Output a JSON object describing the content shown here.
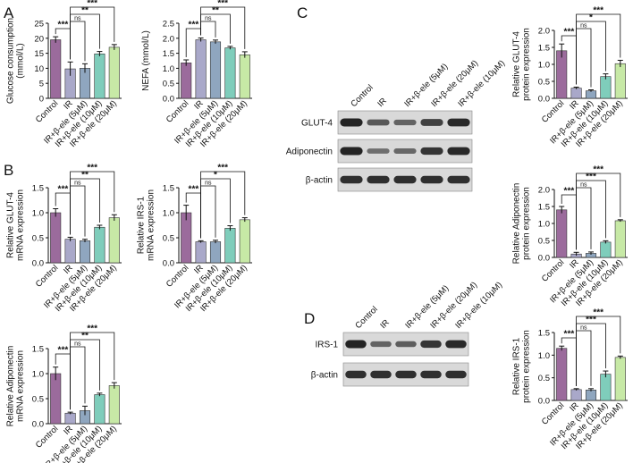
{
  "colors": {
    "Control": "#9b6b9c",
    "IR": "#a9a8c9",
    "IR+b-ele (5uM)": "#8fa6bf",
    "IR+b-ele (10uM)": "#7fcdbb",
    "IR+b-ele (20uM)": "#c7e9a6",
    "blot_bg": "#d9d9d9",
    "band": "#1a1a1a"
  },
  "groups": [
    "Control",
    "IR",
    "IR+β-ele (5μM)",
    "IR+β-ele (10μM)",
    "IR+β-ele (20μM)"
  ],
  "panel_labels": [
    "A",
    "B",
    "C",
    "D"
  ],
  "chart_data": [
    {
      "id": "glucose",
      "type": "bar",
      "panel": "A",
      "ylabel": [
        "Glucose consumption",
        "(mmol/L)"
      ],
      "ylim": [
        0,
        25
      ],
      "yticks": [
        0,
        5,
        10,
        15,
        20,
        25
      ],
      "values": [
        19.5,
        9.8,
        10.0,
        14.8,
        17.0
      ],
      "errors": [
        1.0,
        2.3,
        1.5,
        0.8,
        0.9
      ],
      "sig": [
        {
          "from": 0,
          "to": 1,
          "label": "***"
        },
        {
          "from": 1,
          "to": 2,
          "label": "ns"
        },
        {
          "from": 1,
          "to": 3,
          "label": "**"
        },
        {
          "from": 1,
          "to": 4,
          "label": "***"
        }
      ]
    },
    {
      "id": "nefa",
      "type": "bar",
      "panel": "A",
      "ylabel": [
        "NEFA (mmol/L)"
      ],
      "ylim": [
        0,
        2.5
      ],
      "yticks": [
        0.0,
        0.5,
        1.0,
        1.5,
        2.0,
        2.5
      ],
      "values": [
        1.18,
        1.95,
        1.88,
        1.68,
        1.45
      ],
      "errors": [
        0.1,
        0.06,
        0.06,
        0.05,
        0.1
      ],
      "sig": [
        {
          "from": 0,
          "to": 1,
          "label": "***"
        },
        {
          "from": 1,
          "to": 2,
          "label": "ns"
        },
        {
          "from": 1,
          "to": 3,
          "label": "**"
        },
        {
          "from": 1,
          "to": 4,
          "label": "***"
        }
      ]
    },
    {
      "id": "glut4_mrna",
      "type": "bar",
      "panel": "B",
      "ylabel": [
        "Relative GLUT-4",
        "mRNA expression"
      ],
      "ylim": [
        0,
        1.5
      ],
      "yticks": [
        0.0,
        0.5,
        1.0,
        1.5
      ],
      "values": [
        1.0,
        0.47,
        0.44,
        0.71,
        0.9
      ],
      "errors": [
        0.08,
        0.04,
        0.03,
        0.04,
        0.06
      ],
      "sig": [
        {
          "from": 0,
          "to": 1,
          "label": "***"
        },
        {
          "from": 1,
          "to": 2,
          "label": "ns"
        },
        {
          "from": 1,
          "to": 3,
          "label": "**"
        },
        {
          "from": 1,
          "to": 4,
          "label": "***"
        }
      ]
    },
    {
      "id": "irs1_mrna",
      "type": "bar",
      "panel": "B",
      "ylabel": [
        "Relative IRS-1",
        "mRNA expression"
      ],
      "ylim": [
        0,
        1.5
      ],
      "yticks": [
        0.0,
        0.5,
        1.0,
        1.5
      ],
      "values": [
        1.0,
        0.42,
        0.42,
        0.69,
        0.86
      ],
      "errors": [
        0.15,
        0.02,
        0.03,
        0.05,
        0.04
      ],
      "sig": [
        {
          "from": 0,
          "to": 1,
          "label": "***"
        },
        {
          "from": 1,
          "to": 2,
          "label": "ns"
        },
        {
          "from": 1,
          "to": 3,
          "label": "*"
        },
        {
          "from": 1,
          "to": 4,
          "label": "***"
        }
      ]
    },
    {
      "id": "adipo_mrna",
      "type": "bar",
      "panel": "B",
      "ylabel": [
        "Relative Adiponectin",
        "mRNA expression"
      ],
      "ylim": [
        0,
        1.5
      ],
      "yticks": [
        0.0,
        0.5,
        1.0,
        1.5
      ],
      "values": [
        1.0,
        0.21,
        0.26,
        0.58,
        0.76
      ],
      "errors": [
        0.13,
        0.02,
        0.09,
        0.03,
        0.06
      ],
      "sig": [
        {
          "from": 0,
          "to": 1,
          "label": "***"
        },
        {
          "from": 1,
          "to": 2,
          "label": "ns"
        },
        {
          "from": 1,
          "to": 3,
          "label": "**"
        },
        {
          "from": 1,
          "to": 4,
          "label": "***"
        }
      ]
    },
    {
      "id": "glut4_prot",
      "type": "bar",
      "panel": "C",
      "ylabel": [
        "Relative GLUT-4",
        "protein expression"
      ],
      "ylim": [
        0,
        2.0
      ],
      "yticks": [
        0.0,
        0.5,
        1.0,
        1.5,
        2.0
      ],
      "values": [
        1.4,
        0.3,
        0.22,
        0.64,
        1.02
      ],
      "errors": [
        0.2,
        0.03,
        0.03,
        0.08,
        0.1
      ],
      "sig": [
        {
          "from": 0,
          "to": 1,
          "label": "***"
        },
        {
          "from": 1,
          "to": 2,
          "label": "ns"
        },
        {
          "from": 1,
          "to": 3,
          "label": "*"
        },
        {
          "from": 1,
          "to": 4,
          "label": "***"
        }
      ]
    },
    {
      "id": "adipo_prot",
      "type": "bar",
      "panel": "C",
      "ylabel": [
        "Relative Adiponectin",
        "protein expression"
      ],
      "ylim": [
        0,
        2.0
      ],
      "yticks": [
        0.0,
        0.5,
        1.0,
        1.5,
        2.0
      ],
      "values": [
        1.4,
        0.1,
        0.12,
        0.45,
        1.08
      ],
      "errors": [
        0.1,
        0.05,
        0.04,
        0.04,
        0.03
      ],
      "sig": [
        {
          "from": 0,
          "to": 1,
          "label": "***"
        },
        {
          "from": 1,
          "to": 2,
          "label": "ns"
        },
        {
          "from": 1,
          "to": 3,
          "label": "***"
        },
        {
          "from": 1,
          "to": 4,
          "label": "***"
        }
      ]
    },
    {
      "id": "irs1_prot",
      "type": "bar",
      "panel": "D",
      "ylabel": [
        "Relative IRS-1",
        "protein expression"
      ],
      "ylim": [
        0,
        1.5
      ],
      "yticks": [
        0.0,
        0.5,
        1.0,
        1.5
      ],
      "values": [
        1.15,
        0.24,
        0.23,
        0.58,
        0.95
      ],
      "errors": [
        0.05,
        0.02,
        0.03,
        0.07,
        0.03
      ],
      "sig": [
        {
          "from": 0,
          "to": 1,
          "label": "***"
        },
        {
          "from": 1,
          "to": 2,
          "label": "ns"
        },
        {
          "from": 1,
          "to": 3,
          "label": "***"
        },
        {
          "from": 1,
          "to": 4,
          "label": "***"
        }
      ]
    }
  ],
  "blots": [
    {
      "id": "blot_c",
      "panel": "C",
      "lanes": [
        "Control",
        "IR",
        "IR+β-ele (5μM)",
        "IR+β-ele (20μM)",
        "IR+β-ele (10μM)"
      ],
      "rows": [
        {
          "label": "GLUT-4",
          "intensity": [
            1.0,
            0.55,
            0.45,
            0.75,
            0.95
          ]
        },
        {
          "label": "Adiponectin",
          "intensity": [
            1.0,
            0.35,
            0.4,
            0.85,
            0.95
          ]
        },
        {
          "label": "β-actin",
          "intensity": [
            0.9,
            0.9,
            0.9,
            0.9,
            0.9
          ]
        }
      ]
    },
    {
      "id": "blot_d",
      "panel": "D",
      "lanes": [
        "Control",
        "IR",
        "IR+β-ele (5μM)",
        "IR+β-ele (20μM)",
        "IR+β-ele (10μM)"
      ],
      "rows": [
        {
          "label": "IRS-1",
          "intensity": [
            1.0,
            0.45,
            0.5,
            0.85,
            0.95
          ]
        },
        {
          "label": "β-actin",
          "intensity": [
            0.9,
            0.9,
            0.9,
            0.9,
            0.9
          ]
        }
      ]
    }
  ]
}
